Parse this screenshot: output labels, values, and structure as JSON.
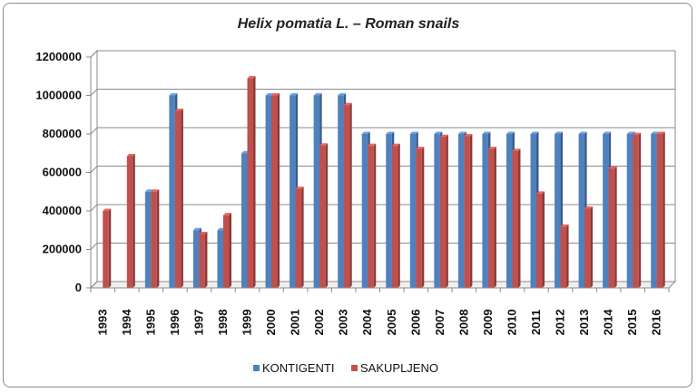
{
  "chart_data": {
    "type": "bar",
    "title": "Helix pomatia L. – Roman snails",
    "xlabel": "",
    "ylabel": "",
    "ylim": [
      0,
      1200000
    ],
    "yticks": [
      "0",
      "200000",
      "400000",
      "600000",
      "800000",
      "1000000",
      "1200000"
    ],
    "categories": [
      "1993",
      "1994",
      "1995",
      "1996",
      "1997",
      "1998",
      "1999",
      "2000",
      "2001",
      "2002",
      "2003",
      "2004",
      "2005",
      "2006",
      "2007",
      "2008",
      "2009",
      "2010",
      "2011",
      "2012",
      "2013",
      "2014",
      "2015",
      "2016"
    ],
    "series": [
      {
        "name": "KONTIGENTI",
        "color": "#4f81bd",
        "values": [
          0,
          0,
          500000,
          1000000,
          300000,
          300000,
          700000,
          1000000,
          1000000,
          1000000,
          1000000,
          800000,
          800000,
          800000,
          800000,
          800000,
          800000,
          800000,
          800000,
          800000,
          800000,
          800000,
          800000,
          800000
        ]
      },
      {
        "name": "SAKUPLJENO",
        "color": "#c0504d",
        "values": [
          400000,
          685000,
          500000,
          920000,
          280000,
          378000,
          1090000,
          1000000,
          515000,
          740000,
          950000,
          738000,
          738000,
          722000,
          785000,
          788000,
          722000,
          712000,
          490000,
          318000,
          412000,
          620000,
          795000,
          800000
        ]
      }
    ],
    "grid": true,
    "legend_position": "bottom-center"
  }
}
